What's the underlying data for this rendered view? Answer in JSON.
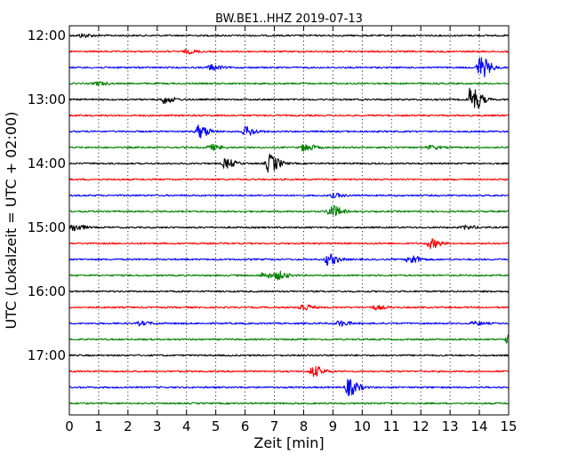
{
  "chart_data": {
    "type": "line",
    "title": "BW.BE1..HHZ 2019-07-13",
    "xlabel": "Zeit  [min]",
    "ylabel": "UTC (Lokalzeit = UTC + 02:00)",
    "xlim": [
      0,
      15
    ],
    "x_ticks": [
      "0",
      "1",
      "2",
      "3",
      "4",
      "5",
      "6",
      "7",
      "8",
      "9",
      "10",
      "11",
      "12",
      "13",
      "14",
      "15"
    ],
    "y_ticks": [
      "12:00",
      "13:00",
      "14:00",
      "15:00",
      "16:00",
      "17:00"
    ],
    "grid": "vertical dotted",
    "colors": [
      "#000000",
      "#ff0000",
      "#0000ff",
      "#008000"
    ],
    "traces": [
      {
        "start": "12:00",
        "color": "#000000",
        "events": [
          {
            "x": 0.4,
            "amp": 2
          }
        ]
      },
      {
        "start": "12:15",
        "color": "#ff0000",
        "events": [
          {
            "x": 4.0,
            "amp": 2
          }
        ]
      },
      {
        "start": "12:30",
        "color": "#0000ff",
        "events": [
          {
            "x": 4.8,
            "amp": 3
          },
          {
            "x": 14.0,
            "amp": 12
          }
        ]
      },
      {
        "start": "12:45",
        "color": "#008000",
        "events": [
          {
            "x": 0.9,
            "amp": 2
          }
        ]
      },
      {
        "start": "13:00",
        "color": "#000000",
        "events": [
          {
            "x": 3.2,
            "amp": 4
          },
          {
            "x": 13.7,
            "amp": 14
          }
        ]
      },
      {
        "start": "13:15",
        "color": "#ff0000",
        "events": []
      },
      {
        "start": "13:30",
        "color": "#0000ff",
        "events": [
          {
            "x": 4.4,
            "amp": 7
          },
          {
            "x": 6.0,
            "amp": 5
          }
        ]
      },
      {
        "start": "13:45",
        "color": "#008000",
        "events": [
          {
            "x": 4.8,
            "amp": 3
          },
          {
            "x": 8.0,
            "amp": 4
          },
          {
            "x": 12.3,
            "amp": 2
          }
        ]
      },
      {
        "start": "14:00",
        "color": "#000000",
        "events": [
          {
            "x": 5.3,
            "amp": 5
          },
          {
            "x": 6.8,
            "amp": 10
          }
        ]
      },
      {
        "start": "14:15",
        "color": "#ff0000",
        "events": []
      },
      {
        "start": "14:30",
        "color": "#0000ff",
        "events": [
          {
            "x": 9.0,
            "amp": 2
          }
        ]
      },
      {
        "start": "14:45",
        "color": "#008000",
        "events": [
          {
            "x": 8.9,
            "amp": 7
          }
        ]
      },
      {
        "start": "15:00",
        "color": "#000000",
        "events": [
          {
            "x": 0.1,
            "amp": 4
          },
          {
            "x": 13.5,
            "amp": 2
          }
        ]
      },
      {
        "start": "15:15",
        "color": "#ff0000",
        "events": [
          {
            "x": 12.3,
            "amp": 5
          }
        ]
      },
      {
        "start": "15:30",
        "color": "#0000ff",
        "events": [
          {
            "x": 8.8,
            "amp": 6
          },
          {
            "x": 11.6,
            "amp": 5
          }
        ]
      },
      {
        "start": "15:45",
        "color": "#008000",
        "events": [
          {
            "x": 6.6,
            "amp": 3
          },
          {
            "x": 7.1,
            "amp": 4
          }
        ]
      },
      {
        "start": "16:00",
        "color": "#000000",
        "events": []
      },
      {
        "start": "16:15",
        "color": "#ff0000",
        "events": [
          {
            "x": 7.9,
            "amp": 4
          },
          {
            "x": 10.4,
            "amp": 2
          }
        ]
      },
      {
        "start": "16:30",
        "color": "#0000ff",
        "events": [
          {
            "x": 2.4,
            "amp": 2
          },
          {
            "x": 9.2,
            "amp": 3
          },
          {
            "x": 13.8,
            "amp": 2
          }
        ]
      },
      {
        "start": "16:45",
        "color": "#008000",
        "events": [
          {
            "x": 14.95,
            "amp": 5
          }
        ]
      },
      {
        "start": "17:00",
        "color": "#000000",
        "events": []
      },
      {
        "start": "17:15",
        "color": "#ff0000",
        "events": [
          {
            "x": 8.3,
            "amp": 6
          }
        ]
      },
      {
        "start": "17:30",
        "color": "#0000ff",
        "events": [
          {
            "x": 9.5,
            "amp": 9
          }
        ]
      },
      {
        "start": "17:45",
        "color": "#008000",
        "events": []
      }
    ]
  }
}
